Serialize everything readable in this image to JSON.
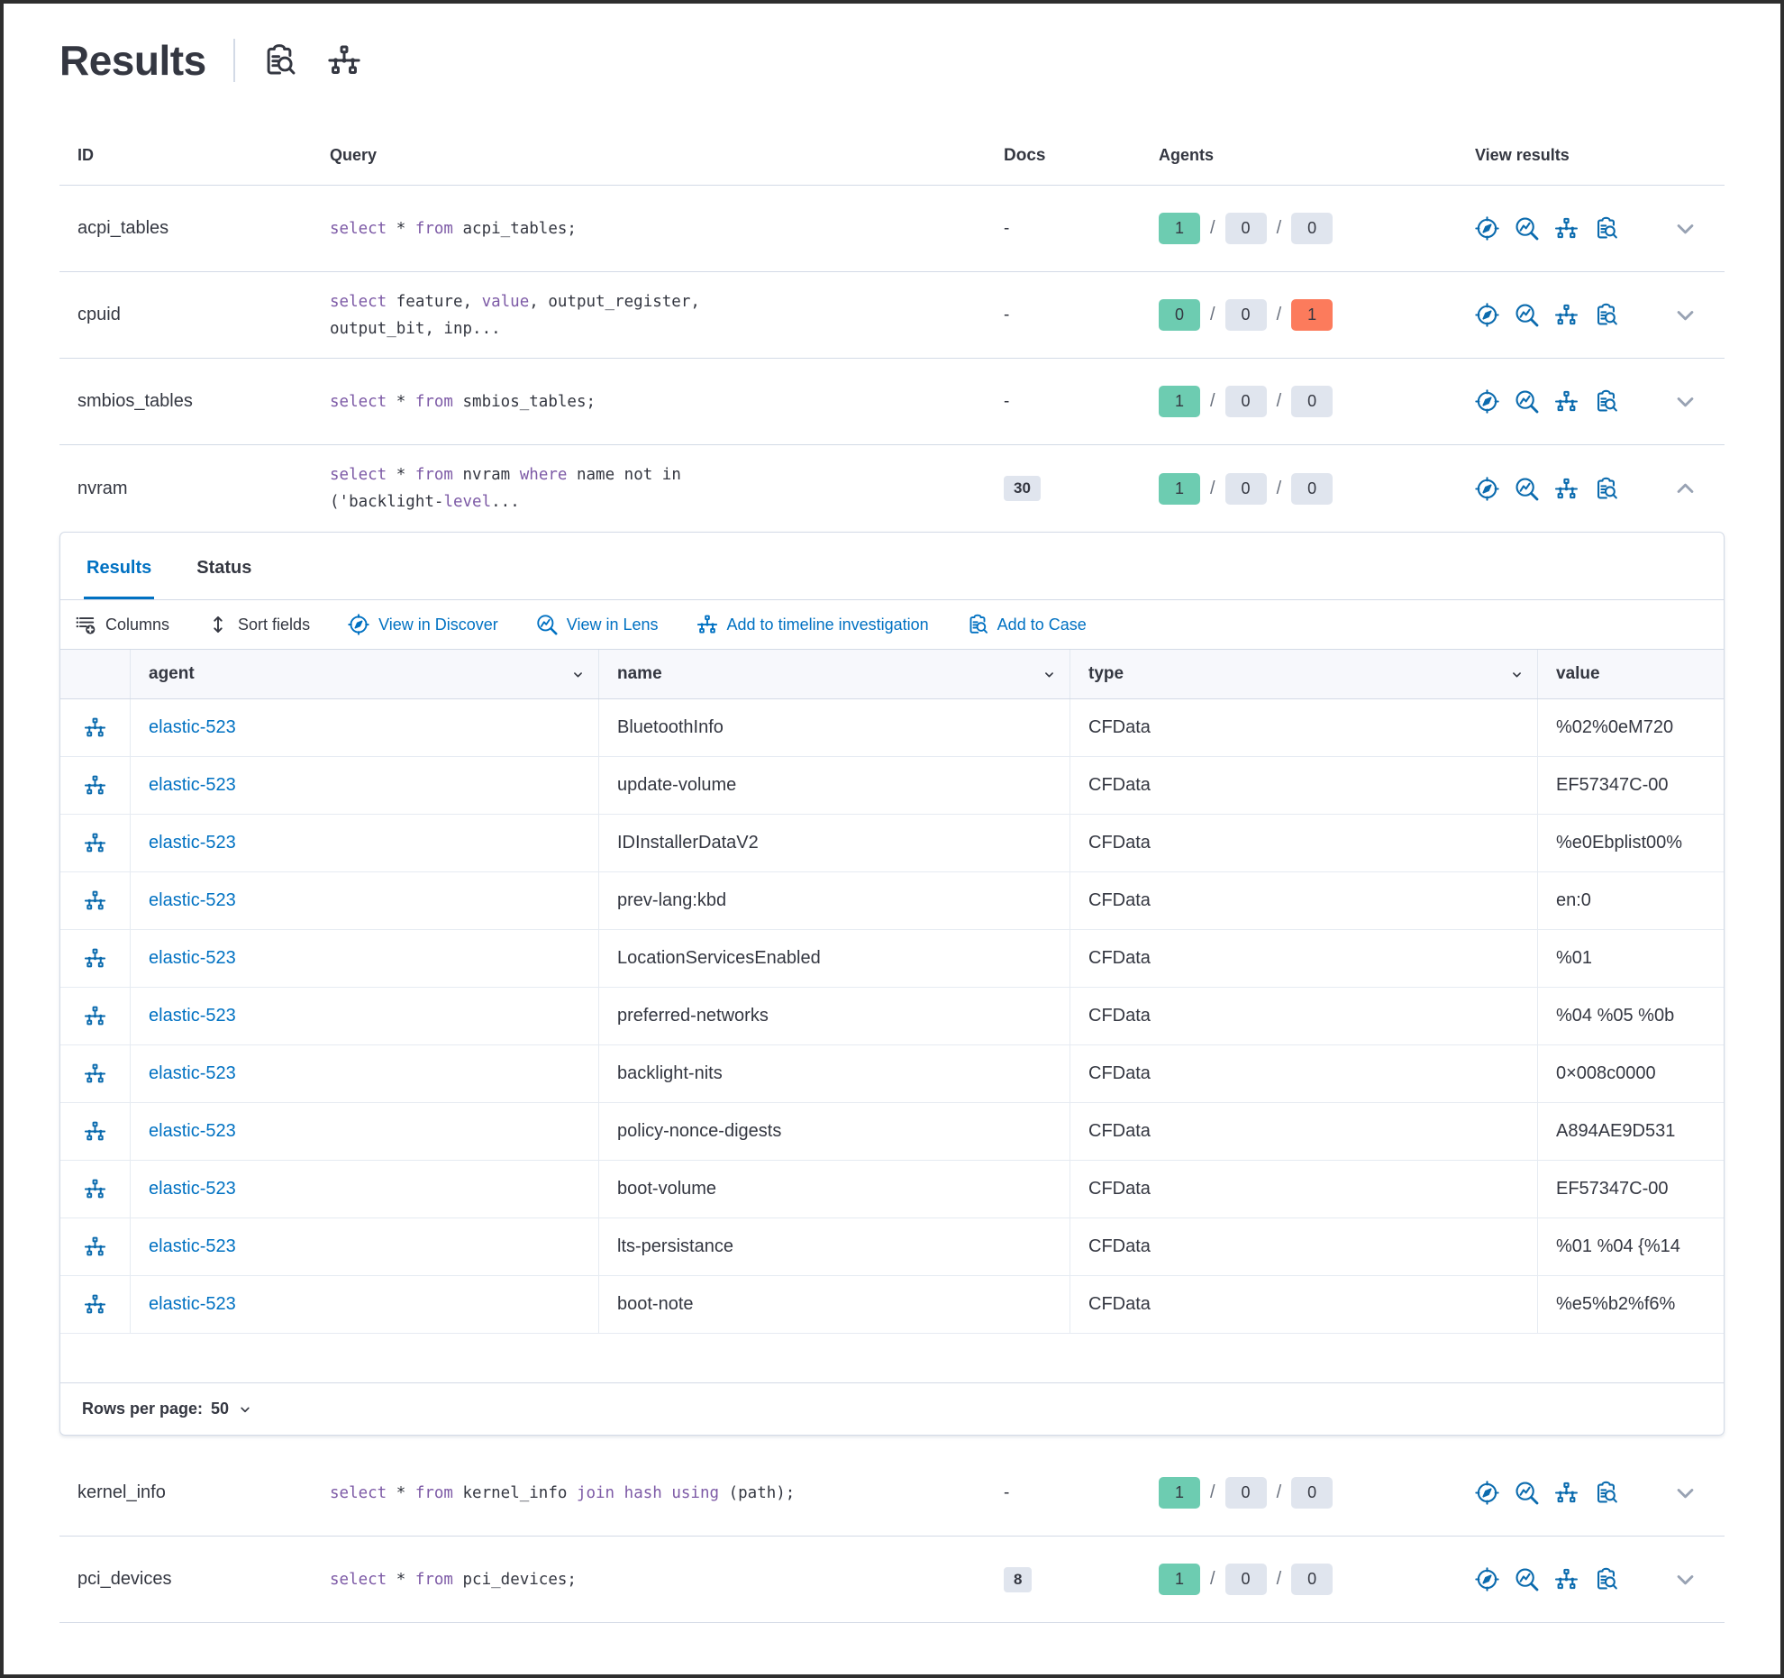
{
  "header": {
    "title": "Results",
    "icons": [
      "inspect",
      "timeline"
    ]
  },
  "colors": {
    "accent_blue": "#0071C2",
    "icon_blue": "#0B6BAE",
    "keyword_purple": "#7D5AA6",
    "badge_success": "#6DCCB1",
    "badge_neutral": "#E0E5EE",
    "badge_danger": "#FC7B5C",
    "text": "#343741",
    "border": "#D3DAE6"
  },
  "outer_table": {
    "columns": [
      "ID",
      "Query",
      "Docs",
      "Agents",
      "View results"
    ],
    "rows_top": [
      {
        "id": "acpi_tables",
        "query": [
          [
            [
              "select",
              1
            ],
            [
              " * ",
              0
            ],
            [
              "from",
              1
            ],
            [
              " acpi_tables;",
              0
            ]
          ]
        ],
        "docs": {
          "text": "-",
          "badge": false
        },
        "agents": [
          {
            "v": "1",
            "c": "success"
          },
          {
            "v": "0",
            "c": "neutral"
          },
          {
            "v": "0",
            "c": "neutral"
          }
        ],
        "expanded": false
      },
      {
        "id": "cpuid",
        "query": [
          [
            [
              "select",
              1
            ],
            [
              " feature, ",
              0
            ],
            [
              "value",
              1
            ],
            [
              ", output_register,",
              0
            ]
          ],
          [
            [
              "output_bit, inp...",
              0
            ]
          ]
        ],
        "docs": {
          "text": "-",
          "badge": false
        },
        "agents": [
          {
            "v": "0",
            "c": "success"
          },
          {
            "v": "0",
            "c": "neutral"
          },
          {
            "v": "1",
            "c": "danger"
          }
        ],
        "expanded": false
      },
      {
        "id": "smbios_tables",
        "query": [
          [
            [
              "select",
              1
            ],
            [
              " * ",
              0
            ],
            [
              "from",
              1
            ],
            [
              " smbios_tables;",
              0
            ]
          ]
        ],
        "docs": {
          "text": "-",
          "badge": false
        },
        "agents": [
          {
            "v": "1",
            "c": "success"
          },
          {
            "v": "0",
            "c": "neutral"
          },
          {
            "v": "0",
            "c": "neutral"
          }
        ],
        "expanded": false
      },
      {
        "id": "nvram",
        "query": [
          [
            [
              "select",
              1
            ],
            [
              " * ",
              0
            ],
            [
              "from",
              1
            ],
            [
              " nvram ",
              0
            ],
            [
              "where",
              1
            ],
            [
              " name not in",
              0
            ]
          ],
          [
            [
              "('backlight-",
              0
            ],
            [
              "level",
              1
            ],
            [
              "...",
              0
            ]
          ]
        ],
        "docs": {
          "text": "30",
          "badge": true
        },
        "agents": [
          {
            "v": "1",
            "c": "success"
          },
          {
            "v": "0",
            "c": "neutral"
          },
          {
            "v": "0",
            "c": "neutral"
          }
        ],
        "expanded": true
      }
    ],
    "rows_bottom": [
      {
        "id": "kernel_info",
        "query": [
          [
            [
              "select",
              1
            ],
            [
              " * ",
              0
            ],
            [
              "from",
              1
            ],
            [
              " kernel_info ",
              0
            ],
            [
              "join",
              1
            ],
            [
              " ",
              0
            ],
            [
              "hash",
              1
            ],
            [
              " ",
              0
            ],
            [
              "using",
              1
            ],
            [
              " (path);",
              0
            ]
          ]
        ],
        "docs": {
          "text": "-",
          "badge": false
        },
        "agents": [
          {
            "v": "1",
            "c": "success"
          },
          {
            "v": "0",
            "c": "neutral"
          },
          {
            "v": "0",
            "c": "neutral"
          }
        ],
        "expanded": false
      },
      {
        "id": "pci_devices",
        "query": [
          [
            [
              "select",
              1
            ],
            [
              " * ",
              0
            ],
            [
              "from",
              1
            ],
            [
              " pci_devices;",
              0
            ]
          ]
        ],
        "docs": {
          "text": "8",
          "badge": true
        },
        "agents": [
          {
            "v": "1",
            "c": "success"
          },
          {
            "v": "0",
            "c": "neutral"
          },
          {
            "v": "0",
            "c": "neutral"
          }
        ],
        "expanded": false
      }
    ]
  },
  "panel": {
    "tabs": [
      {
        "label": "Results",
        "active": true
      },
      {
        "label": "Status",
        "active": false
      }
    ],
    "toolbar": [
      {
        "label": "Columns",
        "icon": "columns",
        "tone": "dark"
      },
      {
        "label": "Sort fields",
        "icon": "sort",
        "tone": "dark"
      },
      {
        "label": "View in Discover",
        "icon": "discover",
        "tone": "blue"
      },
      {
        "label": "View in Lens",
        "icon": "lens",
        "tone": "blue"
      },
      {
        "label": "Add to timeline investigation",
        "icon": "timeline",
        "tone": "blue"
      },
      {
        "label": "Add to Case",
        "icon": "inspect",
        "tone": "blue"
      }
    ],
    "grid": {
      "columns": [
        {
          "label": "agent",
          "sortable": true
        },
        {
          "label": "name",
          "sortable": true
        },
        {
          "label": "type",
          "sortable": true
        },
        {
          "label": "value",
          "sortable": false
        }
      ],
      "rows": [
        {
          "agent": "elastic-523",
          "name": "BluetoothInfo",
          "type": "CFData",
          "value": "%02%0eM720"
        },
        {
          "agent": "elastic-523",
          "name": "update-volume",
          "type": "CFData",
          "value": "EF57347C-00"
        },
        {
          "agent": "elastic-523",
          "name": "IDInstallerDataV2",
          "type": "CFData",
          "value": "%e0Ebplist00%"
        },
        {
          "agent": "elastic-523",
          "name": "prev-lang:kbd",
          "type": "CFData",
          "value": "en:0"
        },
        {
          "agent": "elastic-523",
          "name": "LocationServicesEnabled",
          "type": "CFData",
          "value": "%01"
        },
        {
          "agent": "elastic-523",
          "name": "preferred-networks",
          "type": "CFData",
          "value": "%04 %05 %0b"
        },
        {
          "agent": "elastic-523",
          "name": "backlight-nits",
          "type": "CFData",
          "value": "0×008c0000"
        },
        {
          "agent": "elastic-523",
          "name": "policy-nonce-digests",
          "type": "CFData",
          "value": "A894AE9D531"
        },
        {
          "agent": "elastic-523",
          "name": "boot-volume",
          "type": "CFData",
          "value": "EF57347C-00"
        },
        {
          "agent": "elastic-523",
          "name": "lts-persistance",
          "type": "CFData",
          "value": "%01 %04 {%14"
        },
        {
          "agent": "elastic-523",
          "name": "boot-note",
          "type": "CFData",
          "value": "%e5%b2%f6%"
        }
      ],
      "footer": {
        "rows_per_page_label": "Rows per page:",
        "rows_per_page_value": "50"
      }
    }
  }
}
